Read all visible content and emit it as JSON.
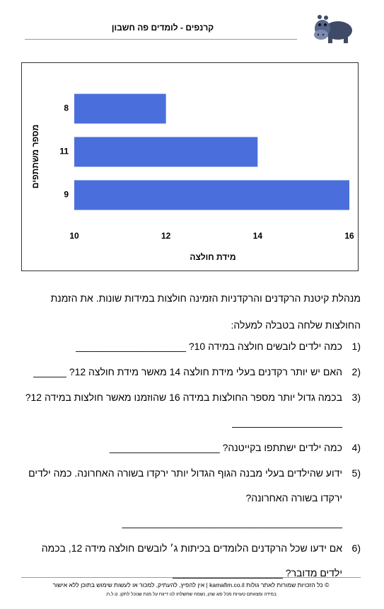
{
  "header": {
    "title": "קרנפים - לומדים פה חשבון"
  },
  "chart_data": {
    "type": "hbar",
    "categories": [
      "8",
      "11",
      "9"
    ],
    "values": [
      12,
      14,
      16
    ],
    "color": "#4a6fdc",
    "xlim": [
      10,
      16
    ],
    "xticks": [
      10,
      12,
      14,
      16
    ],
    "x_label": "מידת חולצה",
    "y_label": "מספר משתתפים"
  },
  "intro": "מנהלת קיטנת הרקדנים והרקדניות הזמינה חולצות במידות שונות. את הזמנת החולצות שלחה בטבלה למעלה:",
  "questions": [
    {
      "number": "1)",
      "text": "כמה ילדים לובשים חולצה במידה 10? ____________________"
    },
    {
      "number": "2)",
      "text": "האם יש יותר רקדנים בעלי מידת חולצה 14 מאשר מידת חולצה 12? ______"
    },
    {
      "number": "3)",
      "text": "בכמה גדול יותר מספר החולצות במידה 16 שהוזמנו מאשר חולצות במידה 12? ____________________"
    },
    {
      "number": "4)",
      "text": "כמה ילדים ישתתפו בקייטנה? ____________________"
    },
    {
      "number": "5)",
      "text": "ידוע שהילדים בעלי מבנה הגוף הגדול יותר ירקדו בשורה האחרונה. כמה ילדים ירקדו בשורה האחרונה? ________________________________________"
    },
    {
      "number": "6)",
      "text": "אם ידעו שכל הרקדנים הלומדים בכיתות ג׳ לובשים חולצה מידה 12, בכמה ילדים מדובר? ____________________"
    }
  ],
  "footer": {
    "line1": "© כל הזכויות שמורות לאתר גולות kamafim.co.il | אין להפיץ, להעתיק, למכור או לעשות שימוש בתוכן ללא אישור",
    "line2": "במידה ומצאתם טעויות מכל סוג שהן, נשמח שתשלחו לנו דיווח על מנת שנוכל לתקן. ט.ל.ח."
  }
}
